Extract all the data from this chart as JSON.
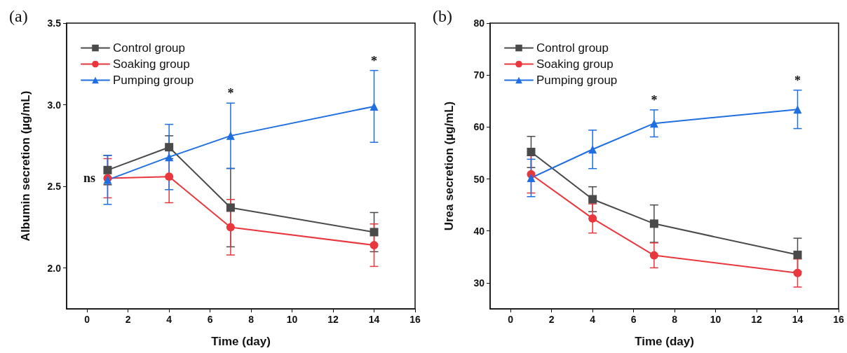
{
  "chart_data": [
    {
      "type": "line",
      "title": "(a)",
      "xlabel": "Time (day)",
      "ylabel": "Albumin secretion (µg/mL)",
      "x": [
        1,
        4,
        7,
        14
      ],
      "series": [
        {
          "name": "Control group",
          "color": "#4a4a4a",
          "marker": "square",
          "values": [
            2.6,
            2.74,
            2.37,
            2.22
          ],
          "errors": [
            0.09,
            0.07,
            0.24,
            0.12
          ]
        },
        {
          "name": "Soaking group",
          "color": "#e8383d",
          "marker": "circle",
          "values": [
            2.55,
            2.56,
            2.25,
            2.14
          ],
          "errors": [
            0.12,
            0.16,
            0.17,
            0.13
          ]
        },
        {
          "name": "Pumping group",
          "color": "#1f6fe0",
          "marker": "triangle",
          "values": [
            2.54,
            2.68,
            2.81,
            2.99
          ],
          "errors": [
            0.15,
            0.2,
            0.2,
            0.22
          ]
        }
      ],
      "xlim": [
        -1,
        16
      ],
      "xticks": [
        0,
        2,
        4,
        6,
        8,
        10,
        12,
        14,
        16
      ],
      "ylim": [
        1.75,
        3.5
      ],
      "yticks": [
        {
          "value": 2,
          "label": "2.0"
        },
        2.5,
        {
          "value": 3,
          "label": "3.0"
        },
        3.5
      ],
      "annotations": [
        {
          "text": "ns",
          "x": 1,
          "y": 2.55
        },
        {
          "text": "*",
          "x": 7,
          "y": 3.01
        },
        {
          "text": "*",
          "x": 14,
          "y": 3.21
        }
      ],
      "legend": "top left",
      "grid": false,
      "line_style": "solid"
    },
    {
      "type": "line",
      "title": "(b)",
      "xlabel": "Time (day)",
      "ylabel": "Urea secretion (µg/mL)",
      "x": [
        1,
        4,
        7,
        14
      ],
      "series": [
        {
          "name": "Control group",
          "color": "#4a4a4a",
          "marker": "square",
          "values": [
            55.2,
            46.1,
            41.4,
            35.4
          ],
          "errors": [
            3,
            2.4,
            3.6,
            3.2
          ]
        },
        {
          "name": "Soaking group",
          "color": "#e8383d",
          "marker": "circle",
          "values": [
            50.9,
            42.4,
            35.3,
            31.9
          ],
          "errors": [
            3.6,
            2.8,
            2.4,
            2.7
          ]
        },
        {
          "name": "Pumping group",
          "color": "#1f6fe0",
          "marker": "triangle",
          "values": [
            50.2,
            55.7,
            60.7,
            63.4
          ],
          "errors": [
            3.6,
            3.7,
            2.6,
            3.7
          ]
        }
      ],
      "xlim": [
        -1,
        16
      ],
      "xticks": [
        0,
        2,
        4,
        6,
        8,
        10,
        12,
        14,
        16
      ],
      "ylim": [
        25,
        80
      ],
      "yticks": [
        30,
        40,
        50,
        60,
        70,
        80
      ],
      "annotations": [
        {
          "text": "*",
          "x": 7,
          "y": 63.3
        },
        {
          "text": "*",
          "x": 14,
          "y": 67.1
        }
      ],
      "legend": "top left",
      "grid": false,
      "line_style": "solid"
    }
  ]
}
